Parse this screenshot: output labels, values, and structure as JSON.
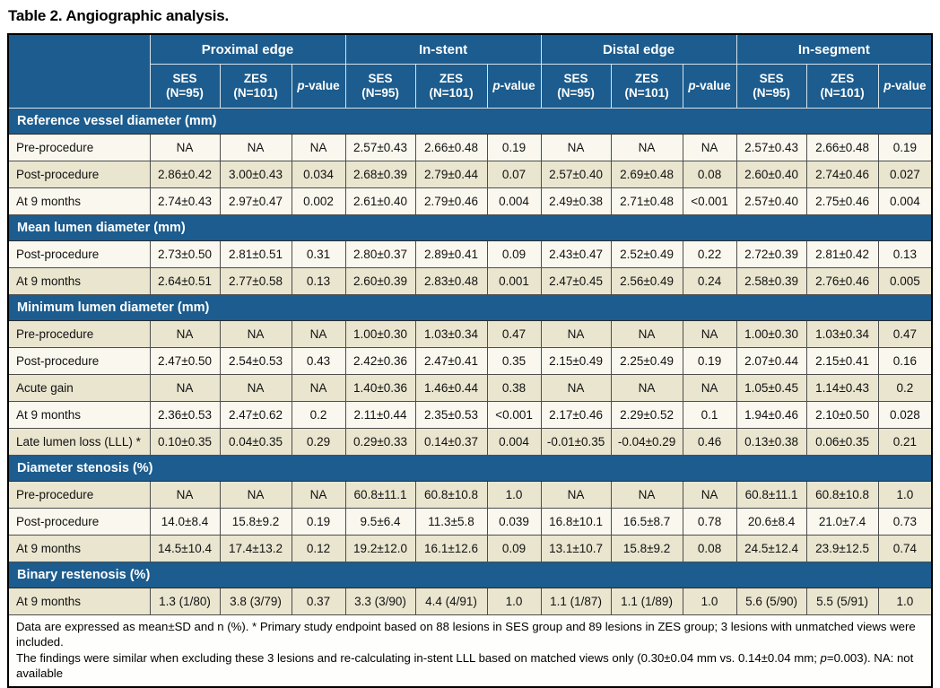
{
  "title": "Table 2. Angiographic analysis.",
  "header": {
    "groups": [
      "Proximal edge",
      "In-stent",
      "Distal edge",
      "In-segment"
    ],
    "ses_label": "SES\n(N=95)",
    "zes_label": "ZES\n(N=101)",
    "p_italic": "p",
    "p_suffix": "-value"
  },
  "sections": [
    {
      "label": "Reference vessel diameter (mm)",
      "rows": [
        {
          "label": "Pre-procedure",
          "shade": "light",
          "values": [
            "NA",
            "NA",
            "NA",
            "2.57±0.43",
            "2.66±0.48",
            "0.19",
            "NA",
            "NA",
            "NA",
            "2.57±0.43",
            "2.66±0.48",
            "0.19"
          ]
        },
        {
          "label": "Post-procedure",
          "shade": "beige",
          "values": [
            "2.86±0.42",
            "3.00±0.43",
            "0.034",
            "2.68±0.39",
            "2.79±0.44",
            "0.07",
            "2.57±0.40",
            "2.69±0.48",
            "0.08",
            "2.60±0.40",
            "2.74±0.46",
            "0.027"
          ]
        },
        {
          "label": "At 9 months",
          "shade": "light",
          "values": [
            "2.74±0.43",
            "2.97±0.47",
            "0.002",
            "2.61±0.40",
            "2.79±0.46",
            "0.004",
            "2.49±0.38",
            "2.71±0.48",
            "<0.001",
            "2.57±0.40",
            "2.75±0.46",
            "0.004"
          ]
        }
      ]
    },
    {
      "label": "Mean lumen diameter (mm)",
      "rows": [
        {
          "label": "Post-procedure",
          "shade": "light",
          "values": [
            "2.73±0.50",
            "2.81±0.51",
            "0.31",
            "2.80±0.37",
            "2.89±0.41",
            "0.09",
            "2.43±0.47",
            "2.52±0.49",
            "0.22",
            "2.72±0.39",
            "2.81±0.42",
            "0.13"
          ]
        },
        {
          "label": "At 9 months",
          "shade": "beige",
          "values": [
            "2.64±0.51",
            "2.77±0.58",
            "0.13",
            "2.60±0.39",
            "2.83±0.48",
            "0.001",
            "2.47±0.45",
            "2.56±0.49",
            "0.24",
            "2.58±0.39",
            "2.76±0.46",
            "0.005"
          ]
        }
      ]
    },
    {
      "label": "Minimum lumen diameter (mm)",
      "rows": [
        {
          "label": "Pre-procedure",
          "shade": "beige",
          "values": [
            "NA",
            "NA",
            "NA",
            "1.00±0.30",
            "1.03±0.34",
            "0.47",
            "NA",
            "NA",
            "NA",
            "1.00±0.30",
            "1.03±0.34",
            "0.47"
          ]
        },
        {
          "label": "Post-procedure",
          "shade": "light",
          "values": [
            "2.47±0.50",
            "2.54±0.53",
            "0.43",
            "2.42±0.36",
            "2.47±0.41",
            "0.35",
            "2.15±0.49",
            "2.25±0.49",
            "0.19",
            "2.07±0.44",
            "2.15±0.41",
            "0.16"
          ]
        },
        {
          "label": "Acute gain",
          "shade": "beige",
          "values": [
            "NA",
            "NA",
            "NA",
            "1.40±0.36",
            "1.46±0.44",
            "0.38",
            "NA",
            "NA",
            "NA",
            "1.05±0.45",
            "1.14±0.43",
            "0.2"
          ]
        },
        {
          "label": "At 9 months",
          "shade": "light",
          "values": [
            "2.36±0.53",
            "2.47±0.62",
            "0.2",
            "2.11±0.44",
            "2.35±0.53",
            "<0.001",
            "2.17±0.46",
            "2.29±0.52",
            "0.1",
            "1.94±0.46",
            "2.10±0.50",
            "0.028"
          ]
        },
        {
          "label": "Late lumen loss (LLL) *",
          "shade": "beige",
          "values": [
            "0.10±0.35",
            "0.04±0.35",
            "0.29",
            "0.29±0.33",
            "0.14±0.37",
            "0.004",
            "-0.01±0.35",
            "-0.04±0.29",
            "0.46",
            "0.13±0.38",
            "0.06±0.35",
            "0.21"
          ]
        }
      ]
    },
    {
      "label": "Diameter stenosis (%)",
      "rows": [
        {
          "label": "Pre-procedure",
          "shade": "beige",
          "values": [
            "NA",
            "NA",
            "NA",
            "60.8±11.1",
            "60.8±10.8",
            "1.0",
            "NA",
            "NA",
            "NA",
            "60.8±11.1",
            "60.8±10.8",
            "1.0"
          ]
        },
        {
          "label": "Post-procedure",
          "shade": "light",
          "values": [
            "14.0±8.4",
            "15.8±9.2",
            "0.19",
            "9.5±6.4",
            "11.3±5.8",
            "0.039",
            "16.8±10.1",
            "16.5±8.7",
            "0.78",
            "20.6±8.4",
            "21.0±7.4",
            "0.73"
          ]
        },
        {
          "label": "At 9 months",
          "shade": "beige",
          "values": [
            "14.5±10.4",
            "17.4±13.2",
            "0.12",
            "19.2±12.0",
            "16.1±12.6",
            "0.09",
            "13.1±10.7",
            "15.8±9.2",
            "0.08",
            "24.5±12.4",
            "23.9±12.5",
            "0.74"
          ]
        }
      ]
    },
    {
      "label": "Binary restenosis (%)",
      "rows": [
        {
          "label": "At 9 months",
          "shade": "beige",
          "values": [
            "1.3 (1/80)",
            "3.8 (3/79)",
            "0.37",
            "3.3 (3/90)",
            "4.4 (4/91)",
            "1.0",
            "1.1 (1/87)",
            "1.1 (1/89)",
            "1.0",
            "5.6 (5/90)",
            "5.5 (5/91)",
            "1.0"
          ]
        }
      ]
    }
  ],
  "footnote": {
    "line1": "Data are expressed as mean±SD and n (%). * Primary study endpoint based on 88 lesions in SES group and 89 lesions in ZES group; 3 lesions with unmatched views were included.",
    "line2_pre": "The findings were similar when excluding these 3 lesions and re-calculating in-stent LLL based on matched views only (0.30±0.04 mm vs. 0.14±0.04 mm; ",
    "line2_italic": "p",
    "line2_post": "=0.003). NA: not available"
  },
  "colors": {
    "header_blue": "#1c5c8e",
    "row_light": "#faf8ee",
    "row_beige": "#e9e5cf",
    "border_dark": "#4d4d4d"
  }
}
